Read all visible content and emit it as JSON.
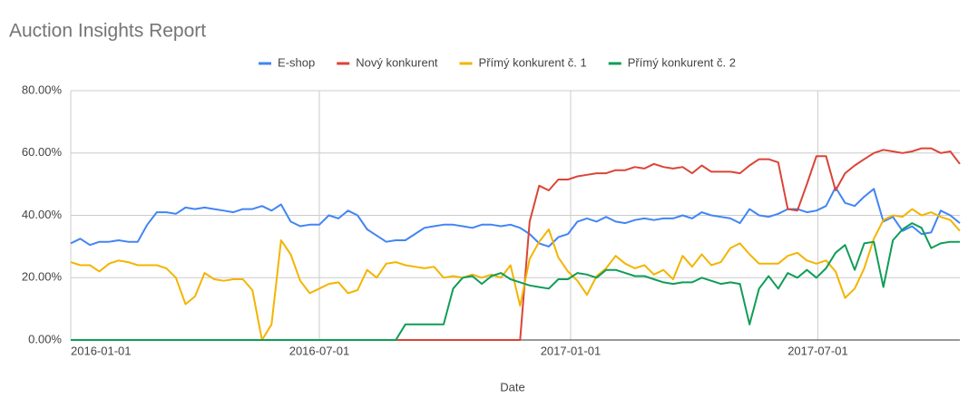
{
  "chart_data": {
    "type": "line",
    "title": "Auction Insights Report",
    "x_label": "Date",
    "x": [
      "2016-01-01",
      "2016-01-08",
      "2016-01-15",
      "2016-01-22",
      "2016-01-29",
      "2016-02-05",
      "2016-02-12",
      "2016-02-19",
      "2016-02-26",
      "2016-03-04",
      "2016-03-11",
      "2016-03-18",
      "2016-03-25",
      "2016-04-01",
      "2016-04-08",
      "2016-04-15",
      "2016-04-22",
      "2016-04-29",
      "2016-05-06",
      "2016-05-13",
      "2016-05-20",
      "2016-05-27",
      "2016-06-03",
      "2016-06-10",
      "2016-06-17",
      "2016-06-24",
      "2016-07-01",
      "2016-07-08",
      "2016-07-15",
      "2016-07-22",
      "2016-07-29",
      "2016-08-05",
      "2016-08-12",
      "2016-08-19",
      "2016-08-26",
      "2016-09-02",
      "2016-09-09",
      "2016-09-16",
      "2016-09-23",
      "2016-09-30",
      "2016-10-07",
      "2016-10-14",
      "2016-10-21",
      "2016-10-28",
      "2016-11-04",
      "2016-11-11",
      "2016-11-18",
      "2016-11-25",
      "2016-12-02",
      "2016-12-09",
      "2016-12-16",
      "2016-12-23",
      "2016-12-30",
      "2017-01-06",
      "2017-01-13",
      "2017-01-20",
      "2017-01-27",
      "2017-02-03",
      "2017-02-10",
      "2017-02-17",
      "2017-02-24",
      "2017-03-03",
      "2017-03-10",
      "2017-03-17",
      "2017-03-24",
      "2017-03-31",
      "2017-04-07",
      "2017-04-14",
      "2017-04-21",
      "2017-04-28",
      "2017-05-05",
      "2017-05-12",
      "2017-05-19",
      "2017-05-26",
      "2017-06-02",
      "2017-06-09",
      "2017-06-16",
      "2017-06-23",
      "2017-06-30",
      "2017-07-07",
      "2017-07-14",
      "2017-07-21",
      "2017-07-28",
      "2017-08-04",
      "2017-08-11",
      "2017-08-18",
      "2017-08-25",
      "2017-09-01",
      "2017-09-08",
      "2017-09-15",
      "2017-09-22",
      "2017-09-29",
      "2017-10-06",
      "2017-10-13"
    ],
    "xlim": [
      "2016-01-01",
      "2017-10-13"
    ],
    "xticks": [
      "2016-01-01",
      "2016-07-01",
      "2017-01-01",
      "2017-07-01"
    ],
    "ylim": [
      0,
      80
    ],
    "yticks": [
      {
        "value": 0,
        "label": "0.00%"
      },
      {
        "value": 20,
        "label": "20.00%"
      },
      {
        "value": 40,
        "label": "40.00%"
      },
      {
        "value": 60,
        "label": "60.00%"
      },
      {
        "value": 80,
        "label": "80.00%"
      }
    ],
    "grid": true,
    "legend": "top",
    "series": [
      {
        "name": "E-shop",
        "color": "#4285f4",
        "values": [
          31,
          32.5,
          30.5,
          31.5,
          31.5,
          32,
          31.5,
          31.5,
          37,
          41,
          41,
          40.5,
          42.5,
          42,
          42.5,
          42,
          41.5,
          41,
          42,
          42,
          43,
          41.5,
          43.5,
          38,
          36.5,
          37,
          37,
          40,
          39,
          41.5,
          40,
          35.5,
          33.5,
          31.5,
          32,
          32,
          34,
          36,
          36.5,
          37,
          37,
          36.5,
          36,
          37,
          37,
          36.5,
          37,
          36,
          34,
          31,
          30,
          33,
          34,
          38,
          39,
          38,
          39.5,
          38,
          37.5,
          38.5,
          39,
          38.5,
          39,
          39,
          40,
          39,
          41,
          40,
          39.5,
          39,
          37.5,
          42,
          40,
          39.5,
          40.5,
          42,
          42,
          41,
          41.5,
          43,
          49,
          44,
          43,
          46,
          48.5,
          38,
          39.5,
          35,
          36.5,
          34,
          34.5,
          41.5,
          40,
          37.5
        ]
      },
      {
        "name": "Nový konkurent",
        "color": "#db4437",
        "values": [
          0,
          0,
          0,
          0,
          0,
          0,
          0,
          0,
          0,
          0,
          0,
          0,
          0,
          0,
          0,
          0,
          0,
          0,
          0,
          0,
          0,
          0,
          0,
          0,
          0,
          0,
          0,
          0,
          0,
          0,
          0,
          0,
          0,
          0,
          0,
          0,
          0,
          0,
          0,
          0,
          0,
          0,
          0,
          0,
          0,
          0,
          0,
          0,
          38,
          49.5,
          48,
          51.5,
          51.5,
          52.5,
          53,
          53.5,
          53.5,
          54.5,
          54.5,
          55.5,
          55,
          56.5,
          55.5,
          55,
          55.5,
          53.5,
          56,
          54,
          54,
          54,
          53.5,
          56,
          58,
          58,
          57,
          42,
          41.5,
          50,
          59,
          59,
          48,
          53.5,
          56,
          58,
          60,
          61,
          60.5,
          60,
          60.5,
          61.5,
          61.5,
          60,
          60.5,
          56.5
        ]
      },
      {
        "name": "Přímý konkurent č. 1",
        "color": "#f4b400",
        "values": [
          25,
          24,
          24,
          22,
          24.5,
          25.5,
          25,
          24,
          24,
          24,
          23,
          20,
          11.5,
          14,
          21.5,
          19.5,
          19,
          19.5,
          19.5,
          16,
          0,
          5,
          32,
          27.5,
          19,
          15,
          16.5,
          18,
          18.5,
          15,
          16,
          22.5,
          20,
          24.5,
          25,
          24,
          23.5,
          23,
          23.5,
          20,
          20.5,
          20,
          21,
          20,
          21,
          20,
          24,
          11,
          26,
          31.5,
          35.5,
          26.5,
          22,
          19,
          14.5,
          20.5,
          23,
          27,
          24.5,
          23,
          24,
          21,
          22.5,
          19.5,
          27,
          23.5,
          27.5,
          24,
          25,
          29.5,
          31,
          27.5,
          24.5,
          24.5,
          24.5,
          27,
          28,
          25.5,
          24.5,
          25.5,
          22,
          13.5,
          16.5,
          23,
          32.5,
          38.5,
          40,
          39.5,
          42,
          40,
          41,
          39.5,
          38.5,
          35
        ]
      },
      {
        "name": "Přímý konkurent č. 2",
        "color": "#0f9d58",
        "values": [
          0,
          0,
          0,
          0,
          0,
          0,
          0,
          0,
          0,
          0,
          0,
          0,
          0,
          0,
          0,
          0,
          0,
          0,
          0,
          0,
          0,
          0,
          0,
          0,
          0,
          0,
          0,
          0,
          0,
          0,
          0,
          0,
          0,
          0,
          0,
          5,
          5,
          5,
          5,
          5,
          16.5,
          20,
          20.5,
          18,
          20.5,
          21.5,
          19.5,
          18.5,
          17.5,
          17,
          16.5,
          19.5,
          19.5,
          21.5,
          21,
          20,
          22.5,
          22.5,
          21.5,
          20.5,
          20.5,
          19.5,
          18.5,
          18,
          18.5,
          18.5,
          20,
          19,
          18,
          18.5,
          18,
          5,
          16.5,
          20.5,
          16.5,
          21.5,
          20,
          22.5,
          20,
          23,
          28,
          30.5,
          22.5,
          31,
          31.5,
          17,
          32,
          35.5,
          37.5,
          36,
          29.5,
          31,
          31.5,
          31.5
        ]
      }
    ]
  }
}
